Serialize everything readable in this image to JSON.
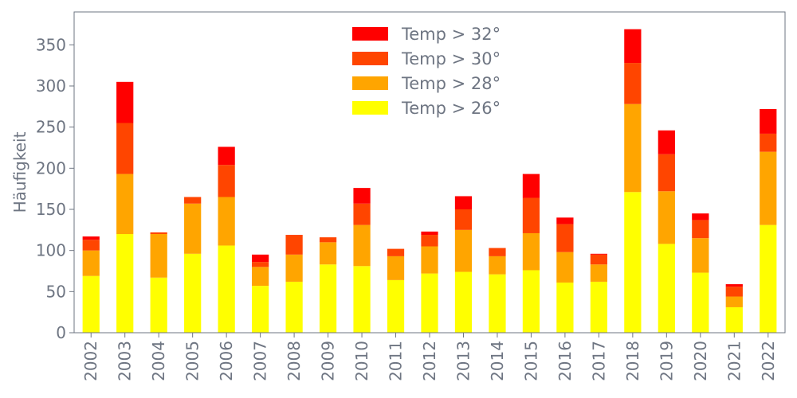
{
  "chart_data": {
    "type": "bar",
    "stacked": true,
    "ylabel": "Häufigkeit",
    "xlabel": "",
    "ylim": [
      0,
      390
    ],
    "yticks": [
      0,
      50,
      100,
      150,
      200,
      250,
      300,
      350
    ],
    "categories": [
      "2002",
      "2003",
      "2004",
      "2005",
      "2006",
      "2007",
      "2008",
      "2009",
      "2010",
      "2011",
      "2012",
      "2013",
      "2014",
      "2015",
      "2016",
      "2017",
      "2018",
      "2019",
      "2020",
      "2021",
      "2022"
    ],
    "legend_position": "top-center",
    "series": [
      {
        "name": "Temp > 26°",
        "color": "#ffff00",
        "values": [
          69,
          120,
          67,
          96,
          106,
          57,
          62,
          83,
          81,
          64,
          72,
          74,
          71,
          76,
          61,
          62,
          171,
          108,
          73,
          31,
          131
        ]
      },
      {
        "name": "Temp > 28°",
        "color": "#ffa500",
        "values": [
          31,
          73,
          53,
          61,
          59,
          23,
          33,
          27,
          50,
          29,
          33,
          51,
          22,
          45,
          37,
          21,
          107,
          64,
          42,
          13,
          89
        ]
      },
      {
        "name": "Temp > 30°",
        "color": "#ff4500",
        "values": [
          13,
          62,
          2,
          8,
          39,
          6,
          24,
          6,
          26,
          9,
          14,
          25,
          10,
          43,
          34,
          12,
          50,
          45,
          22,
          12,
          22
        ]
      },
      {
        "name": "Temp > 32°",
        "color": "#ff0000",
        "values": [
          4,
          50,
          0,
          0,
          22,
          9,
          0,
          0,
          19,
          0,
          4,
          16,
          0,
          29,
          8,
          1,
          41,
          29,
          8,
          3,
          30
        ]
      }
    ]
  }
}
